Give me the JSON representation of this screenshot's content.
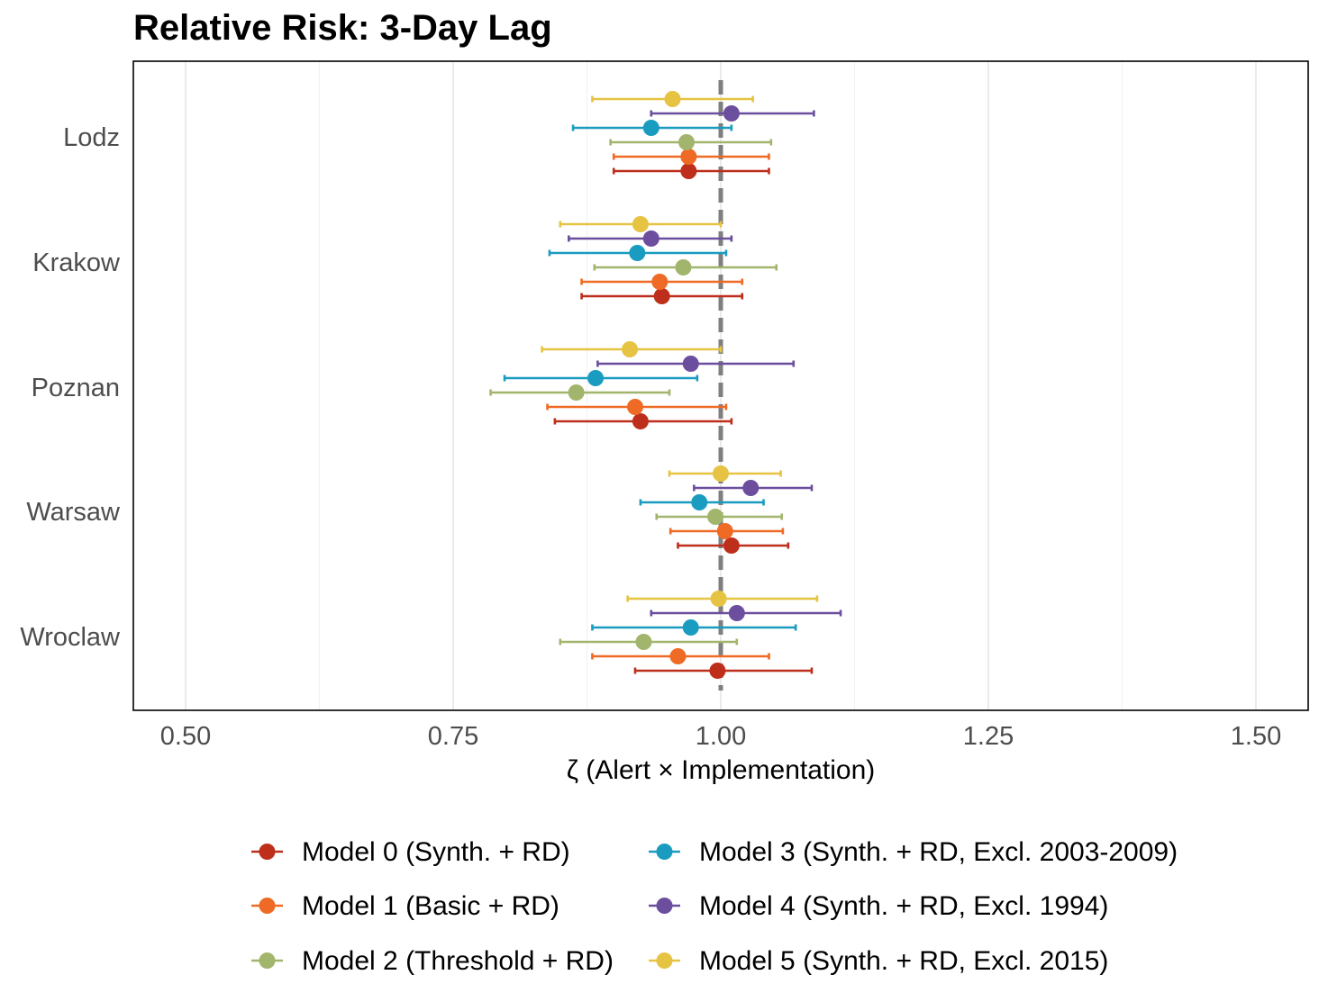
{
  "chart_data": {
    "type": "scatter",
    "subtype": "forest-plot",
    "title": "Relative Risk: 3-Day Lag",
    "xlabel": "ζ (Alert × Implementation)",
    "ylabel": "",
    "xlim": [
      0.45,
      1.55
    ],
    "xticks": [
      0.5,
      0.75,
      1.0,
      1.25,
      1.5
    ],
    "xtick_labels": [
      "0.50",
      "0.75",
      "1.00",
      "1.25",
      "1.50"
    ],
    "reference_line": 1.0,
    "grid": "vertical major and minor",
    "legend_position": "bottom",
    "categories": [
      "Lodz",
      "Krakow",
      "Poznan",
      "Warsaw",
      "Wroclaw"
    ],
    "series": [
      {
        "name": "Model 0 (Synth. + RD)",
        "color": "#be2f1b",
        "estimate": [
          0.97,
          0.945,
          0.925,
          1.01,
          0.997
        ],
        "lower": [
          0.9,
          0.87,
          0.845,
          0.96,
          0.92
        ],
        "upper": [
          1.045,
          1.02,
          1.01,
          1.063,
          1.085
        ]
      },
      {
        "name": "Model 1 (Basic + RD)",
        "color": "#ef6a24",
        "estimate": [
          0.97,
          0.943,
          0.92,
          1.004,
          0.96
        ],
        "lower": [
          0.9,
          0.87,
          0.838,
          0.953,
          0.88
        ],
        "upper": [
          1.045,
          1.02,
          1.005,
          1.058,
          1.045
        ]
      },
      {
        "name": "Model 2 (Threshold + RD)",
        "color": "#a2b56c",
        "estimate": [
          0.968,
          0.965,
          0.865,
          0.995,
          0.928
        ],
        "lower": [
          0.897,
          0.882,
          0.785,
          0.94,
          0.85
        ],
        "upper": [
          1.047,
          1.052,
          0.952,
          1.057,
          1.015
        ]
      },
      {
        "name": "Model 3 (Synth. + RD, Excl. 2003-2009)",
        "color": "#1a9cc0",
        "estimate": [
          0.935,
          0.922,
          0.883,
          0.98,
          0.972
        ],
        "lower": [
          0.862,
          0.84,
          0.798,
          0.925,
          0.88
        ],
        "upper": [
          1.01,
          1.005,
          0.978,
          1.04,
          1.07
        ]
      },
      {
        "name": "Model 4 (Synth. + RD, Excl. 1994)",
        "color": "#6c4e9e",
        "estimate": [
          1.01,
          0.935,
          0.972,
          1.028,
          1.015
        ],
        "lower": [
          0.935,
          0.858,
          0.885,
          0.975,
          0.935
        ],
        "upper": [
          1.087,
          1.01,
          1.068,
          1.085,
          1.112
        ]
      },
      {
        "name": "Model 5 (Synth. + RD, Excl. 2015)",
        "color": "#e6c342",
        "estimate": [
          0.955,
          0.925,
          0.915,
          1.0,
          0.998
        ],
        "lower": [
          0.88,
          0.85,
          0.833,
          0.952,
          0.913
        ],
        "upper": [
          1.03,
          1.0,
          1.0,
          1.056,
          1.09
        ]
      }
    ]
  }
}
